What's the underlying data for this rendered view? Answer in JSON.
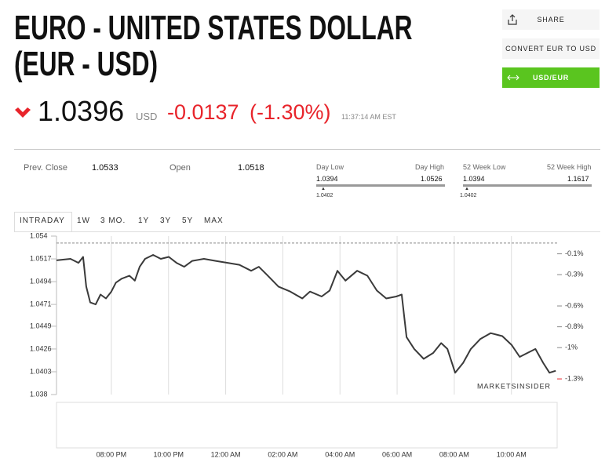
{
  "header": {
    "title_line1": "EURO - UNITED STATES DOLLAR",
    "title_line2": "(EUR - USD)"
  },
  "buttons": [
    "SHARE",
    "CONVERT EUR TO USD",
    "USD/EUR"
  ],
  "quote": {
    "price": "1.0396",
    "currency": "USD",
    "change": "-0.0137",
    "change_percent": "(-1.30%)",
    "time": "11:37:14 AM EST"
  },
  "stats": {
    "prev_close_label": "Prev. Close",
    "prev_close": "1.0533",
    "open_label": "Open",
    "open": "1.0518",
    "day_low_label": "Day Low",
    "day_high_label": "Day High",
    "day_low": "1.0394",
    "day_high": "1.0526",
    "day_marker": "1.0402",
    "week52_low_label": "52 Week Low",
    "week52_high_label": "52 Week High",
    "week52_low": "1.0394",
    "week52_high": "1.1617",
    "week52_marker": "1.0402"
  },
  "tabs": [
    "INTRADAY",
    "1W",
    "3 MO.",
    "1Y",
    "3Y",
    "5Y",
    "MAX"
  ],
  "chart_data": {
    "type": "line",
    "x": [
      18.08,
      18.57,
      18.85,
      19.01,
      19.12,
      19.26,
      19.45,
      19.62,
      19.81,
      20.0,
      20.16,
      20.36,
      20.63,
      20.82,
      20.99,
      21.18,
      21.46,
      21.73,
      22.01,
      22.28,
      22.55,
      22.83,
      23.24,
      23.65,
      24.07,
      24.48,
      24.89,
      25.16,
      25.44,
      25.85,
      26.26,
      26.68,
      26.95,
      27.36,
      27.64,
      27.91,
      28.19,
      28.6,
      28.96,
      29.29,
      29.62,
      29.97,
      30.16,
      30.33,
      30.6,
      30.93,
      31.26,
      31.54,
      31.76,
      32.03,
      32.31,
      32.58,
      32.91,
      33.27,
      33.68,
      34.01,
      34.29,
      34.56,
      34.84,
      35.11,
      35.33,
      35.55
    ],
    "values": [
      1.05155,
      1.0517,
      1.0513,
      1.0519,
      1.0489,
      1.0473,
      1.0471,
      1.0481,
      1.0477,
      1.0484,
      1.0493,
      1.0497,
      1.05,
      1.0495,
      1.0509,
      1.0517,
      1.0521,
      1.0517,
      1.0519,
      1.0513,
      1.0509,
      1.0515,
      1.0517,
      1.0515,
      1.0513,
      1.0511,
      1.0505,
      1.0509,
      1.0501,
      1.0489,
      1.0484,
      1.0477,
      1.0484,
      1.0479,
      1.0485,
      1.0505,
      1.0495,
      1.0505,
      1.05,
      1.0485,
      1.0477,
      1.0479,
      1.0481,
      1.0438,
      1.0426,
      1.0416,
      1.0422,
      1.0432,
      1.0426,
      1.0402,
      1.0412,
      1.0426,
      1.0436,
      1.0442,
      1.0439,
      1.043,
      1.0418,
      1.0422,
      1.0426,
      1.0412,
      1.0402,
      1.0404
    ],
    "color": "#3a3a3a",
    "xlim": [
      18.08,
      35.6
    ],
    "xticks": [
      {
        "value": 20,
        "label": "08:00 PM"
      },
      {
        "value": 22,
        "label": "10:00 PM"
      },
      {
        "value": 24,
        "label": "12:00 AM"
      },
      {
        "value": 26,
        "label": "02:00 AM"
      },
      {
        "value": 28,
        "label": "04:00 AM"
      },
      {
        "value": 30,
        "label": "06:00 AM"
      },
      {
        "value": 32,
        "label": "08:00 AM"
      },
      {
        "value": 34,
        "label": "10:00 AM"
      }
    ],
    "ylim": [
      1.038,
      1.054
    ],
    "yticks": [
      1.054,
      1.0517,
      1.0494,
      1.0471,
      1.0449,
      1.0426,
      1.0403,
      1.038
    ],
    "y2lim": [
      -1.45,
      0.07
    ],
    "y2ticks": [
      {
        "value": -0.1,
        "label": "-0.1%"
      },
      {
        "value": -0.3,
        "label": "-0.3%"
      },
      {
        "value": -0.6,
        "label": "-0.6%"
      },
      {
        "value": -0.8,
        "label": "-0.8%"
      },
      {
        "value": -1,
        "label": "-1%"
      },
      {
        "value": -1.3,
        "label": "-1.3%"
      }
    ],
    "baseline": 1.0533,
    "grid": true,
    "watermark": "MARKETSINSIDER"
  }
}
